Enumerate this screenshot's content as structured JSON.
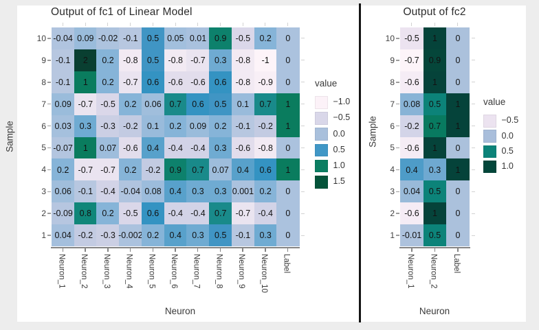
{
  "page": {
    "background": "#ededed",
    "panel_background": "#ffffff",
    "divider_color": "#141414"
  },
  "chart_data": [
    {
      "type": "heatmap",
      "title": "Output of fc1 of Linear Model",
      "xlabel": "Neuron",
      "ylabel": "Sample",
      "columns": [
        "Neuron_1",
        "Neuron_2",
        "Neuron_3",
        "Neuron_4",
        "Neuron_5",
        "Neuron_6",
        "Neuron_7",
        "Neuron_8",
        "Neuron_9",
        "Neuron_10",
        "Label"
      ],
      "rows": [
        "10",
        "9",
        "8",
        "7",
        "6",
        "5",
        "4",
        "3",
        "2",
        "1"
      ],
      "values": [
        [
          -0.04,
          0.09,
          -0.02,
          -0.1,
          0.5,
          0.05,
          0.01,
          0.9,
          -0.5,
          0.2,
          0
        ],
        [
          -0.1,
          2,
          0.2,
          -0.8,
          0.5,
          -0.8,
          -0.7,
          0.3,
          -0.8,
          -1,
          0
        ],
        [
          -0.1,
          1,
          0.2,
          -0.7,
          0.6,
          -0.6,
          -0.6,
          0.6,
          -0.8,
          -0.9,
          0
        ],
        [
          0.09,
          -0.7,
          -0.5,
          0.2,
          0.06,
          0.7,
          0.6,
          0.5,
          0.1,
          0.7,
          1
        ],
        [
          0.03,
          0.3,
          -0.3,
          -0.2,
          0.1,
          0.2,
          0.09,
          0.2,
          -0.1,
          -0.2,
          1
        ],
        [
          -0.07,
          1,
          0.07,
          -0.6,
          0.4,
          -0.4,
          -0.4,
          0.3,
          -0.6,
          -0.8,
          0
        ],
        [
          0.2,
          -0.7,
          -0.7,
          0.2,
          -0.2,
          0.9,
          0.7,
          0.07,
          0.4,
          0.6,
          1
        ],
        [
          0.06,
          -0.1,
          -0.4,
          -0.04,
          0.08,
          0.4,
          0.3,
          0.3,
          0.001,
          0.2,
          0
        ],
        [
          -0.09,
          0.8,
          0.2,
          -0.5,
          0.6,
          -0.4,
          -0.4,
          0.7,
          -0.7,
          -0.4,
          0
        ],
        [
          0.04,
          -0.2,
          -0.3,
          -0.002,
          0.2,
          0.4,
          0.3,
          0.5,
          -0.1,
          0.3,
          0
        ]
      ],
      "color_domain": [
        -1,
        2
      ],
      "color_stops": [
        [
          -1.0,
          "#fdf4f9"
        ],
        [
          -0.8,
          "#f2eaf3"
        ],
        [
          -0.5,
          "#dad7e9"
        ],
        [
          -0.2,
          "#c3cbe2"
        ],
        [
          0.0,
          "#abc2de"
        ],
        [
          0.2,
          "#86b4d8"
        ],
        [
          0.35,
          "#64a7cf"
        ],
        [
          0.5,
          "#4095c4"
        ],
        [
          0.62,
          "#3292c2"
        ],
        [
          0.68,
          "#1b8b8d"
        ],
        [
          0.8,
          "#108679"
        ],
        [
          1.0,
          "#0a7c5e"
        ],
        [
          1.5,
          "#05523a"
        ],
        [
          2.0,
          "#093f31"
        ]
      ],
      "legend": {
        "title": "value",
        "entries": [
          {
            "label": "−1.0",
            "color": "#fcf2f8"
          },
          {
            "label": "−0.5",
            "color": "#d9d7e9"
          },
          {
            "label": "0.0",
            "color": "#a9c0dc"
          },
          {
            "label": "0.5",
            "color": "#4097c6"
          },
          {
            "label": "1.0",
            "color": "#0b7e62"
          },
          {
            "label": "1.5",
            "color": "#04533a"
          }
        ]
      }
    },
    {
      "type": "heatmap",
      "title": "Output of fc2",
      "xlabel": "Neuron",
      "ylabel": "Sample",
      "columns": [
        "Neuron_1",
        "Neuron_2",
        "Label"
      ],
      "rows": [
        "10",
        "9",
        "8",
        "7",
        "6",
        "5",
        "4",
        "3",
        "2",
        "1"
      ],
      "values": [
        [
          -0.5,
          1,
          0
        ],
        [
          -0.7,
          0.9,
          0
        ],
        [
          -0.6,
          1,
          0
        ],
        [
          0.08,
          0.5,
          1
        ],
        [
          -0.2,
          0.7,
          1
        ],
        [
          -0.6,
          1,
          0
        ],
        [
          0.4,
          0.3,
          1
        ],
        [
          0.04,
          0.5,
          0
        ],
        [
          -0.6,
          1,
          0
        ],
        [
          -0.01,
          0.5,
          0
        ]
      ],
      "color_domain": [
        -0.7,
        1
      ],
      "color_stops": [
        [
          -0.7,
          "#fdf4f9"
        ],
        [
          -0.5,
          "#ece3f0"
        ],
        [
          -0.2,
          "#d3d4e8"
        ],
        [
          0.0,
          "#abc1dc"
        ],
        [
          0.1,
          "#7fb0d4"
        ],
        [
          0.3,
          "#6fa9d1"
        ],
        [
          0.4,
          "#4e9cc8"
        ],
        [
          0.5,
          "#0c8379"
        ],
        [
          0.7,
          "#087a60"
        ],
        [
          0.9,
          "#05463a"
        ],
        [
          1.0,
          "#05433a"
        ]
      ],
      "legend": {
        "title": "value",
        "entries": [
          {
            "label": "−0.5",
            "color": "#ece3f0"
          },
          {
            "label": "0.0",
            "color": "#a9bedb"
          },
          {
            "label": "0.5",
            "color": "#0c8379"
          },
          {
            "label": "1.0",
            "color": "#02463a"
          }
        ]
      }
    }
  ]
}
